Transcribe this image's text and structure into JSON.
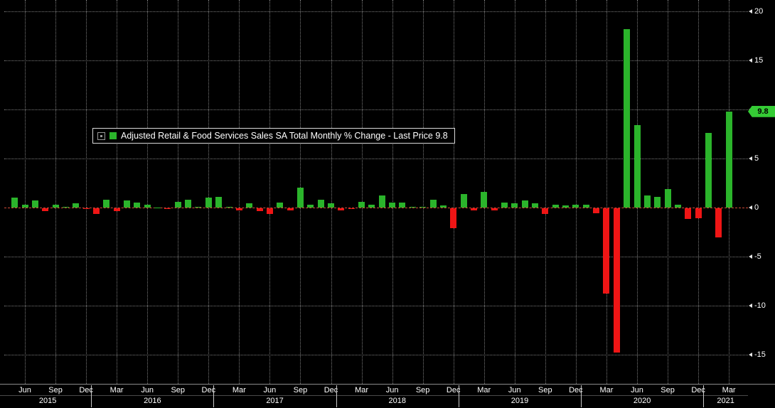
{
  "legend": {
    "label": "Adjusted Retail & Food Services Sales SA Total Monthly % Change - Last Price 9.8"
  },
  "last_price_tag": {
    "value": "9.8"
  },
  "colors": {
    "background": "#000000",
    "positive_bar": "#2bb42b",
    "negative_bar": "#ef1515",
    "zero_line": "#cf4a38",
    "grid_line": "#7b7b7b",
    "axis_text": "#ffffff",
    "price_tag_bg": "#35cc35",
    "price_tag_text": "#000000",
    "legend_border": "#d9d9d9"
  },
  "chart_data": {
    "type": "bar",
    "title": "Adjusted Retail & Food Services Sales SA Total Monthly % Change",
    "xlabel": "",
    "ylabel": "",
    "last_price": 9.8,
    "ylim": [
      -18,
      21.2
    ],
    "y_ticks": [
      20,
      15,
      10,
      5,
      0,
      -5,
      -10,
      -15
    ],
    "grid": true,
    "legend_position": "upper-left-inside",
    "month_labels": {
      "03": "Mar",
      "06": "Jun",
      "09": "Sep",
      "12": "Dec"
    },
    "x": [
      "2015-05",
      "2015-06",
      "2015-07",
      "2015-08",
      "2015-09",
      "2015-10",
      "2015-11",
      "2015-12",
      "2016-01",
      "2016-02",
      "2016-03",
      "2016-04",
      "2016-05",
      "2016-06",
      "2016-07",
      "2016-08",
      "2016-09",
      "2016-10",
      "2016-11",
      "2016-12",
      "2017-01",
      "2017-02",
      "2017-03",
      "2017-04",
      "2017-05",
      "2017-06",
      "2017-07",
      "2017-08",
      "2017-09",
      "2017-10",
      "2017-11",
      "2017-12",
      "2018-01",
      "2018-02",
      "2018-03",
      "2018-04",
      "2018-05",
      "2018-06",
      "2018-07",
      "2018-08",
      "2018-09",
      "2018-10",
      "2018-11",
      "2018-12",
      "2019-01",
      "2019-02",
      "2019-03",
      "2019-04",
      "2019-05",
      "2019-06",
      "2019-07",
      "2019-08",
      "2019-09",
      "2019-10",
      "2019-11",
      "2019-12",
      "2020-01",
      "2020-02",
      "2020-03",
      "2020-04",
      "2020-05",
      "2020-06",
      "2020-07",
      "2020-08",
      "2020-09",
      "2020-10",
      "2020-11",
      "2020-12",
      "2021-01",
      "2021-02",
      "2021-03"
    ],
    "values": [
      1.0,
      0.3,
      0.7,
      -0.3,
      0.3,
      0.1,
      0.4,
      -0.1,
      -0.6,
      0.8,
      -0.3,
      0.7,
      0.5,
      0.3,
      0.0,
      -0.1,
      0.6,
      0.8,
      0.1,
      1.0,
      1.1,
      0.1,
      -0.2,
      0.4,
      -0.3,
      -0.6,
      0.5,
      -0.2,
      2.0,
      0.3,
      0.8,
      0.4,
      -0.2,
      -0.1,
      0.6,
      0.3,
      1.2,
      0.5,
      0.5,
      0.1,
      0.1,
      0.8,
      0.2,
      -2.0,
      1.4,
      -0.2,
      1.6,
      -0.2,
      0.5,
      0.4,
      0.7,
      0.4,
      -0.6,
      0.3,
      0.2,
      0.3,
      0.3,
      -0.5,
      -8.7,
      -14.7,
      18.2,
      8.4,
      1.2,
      1.1,
      1.9,
      0.3,
      -1.1,
      -1.0,
      7.6,
      -3.0,
      9.8
    ]
  }
}
